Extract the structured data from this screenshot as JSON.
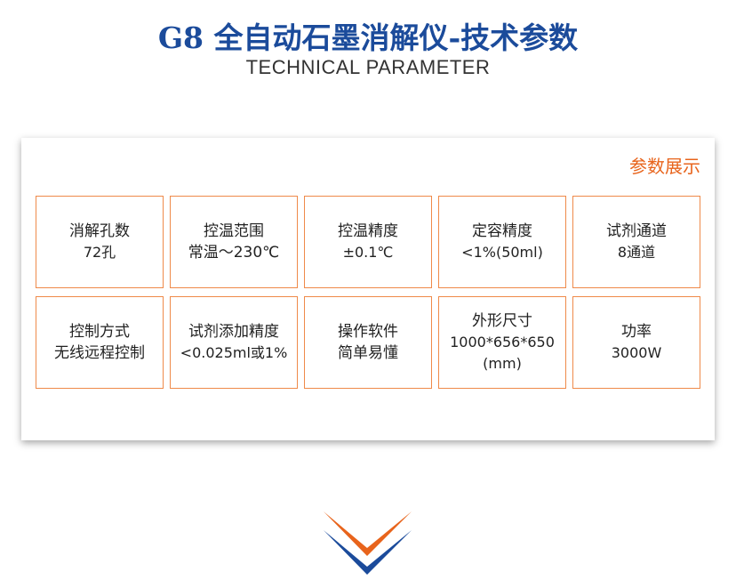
{
  "header": {
    "title": "G8 全自动石墨消解仪-技术参数",
    "subtitle": "TECHNICAL  PARAMETER"
  },
  "panel": {
    "label": "参数展示",
    "cells": [
      {
        "lines": [
          "消解孔数",
          "72孔"
        ]
      },
      {
        "lines": [
          "控温范围",
          "常温～230℃"
        ]
      },
      {
        "lines": [
          "控温精度",
          "±0.1℃"
        ]
      },
      {
        "lines": [
          "定容精度",
          "<1%(50ml)"
        ]
      },
      {
        "lines": [
          "试剂通道",
          "8通道"
        ]
      },
      {
        "lines": [
          "控制方式",
          "无线远程控制"
        ]
      },
      {
        "lines": [
          "试剂添加精度",
          "<0.025ml或1%"
        ]
      },
      {
        "lines": [
          "操作软件",
          "简单易懂"
        ]
      },
      {
        "lines": [
          "外形尺寸",
          "1000*656*650",
          "(mm)"
        ]
      },
      {
        "lines": [
          "功率",
          "3000W"
        ]
      }
    ]
  },
  "colors": {
    "title": "#1b4b9b",
    "accent": "#e8641c",
    "border": "#ef8a4a",
    "chevron_blue": "#1b4b9b"
  },
  "decor": {
    "icon": "double-chevron-down-icon"
  }
}
